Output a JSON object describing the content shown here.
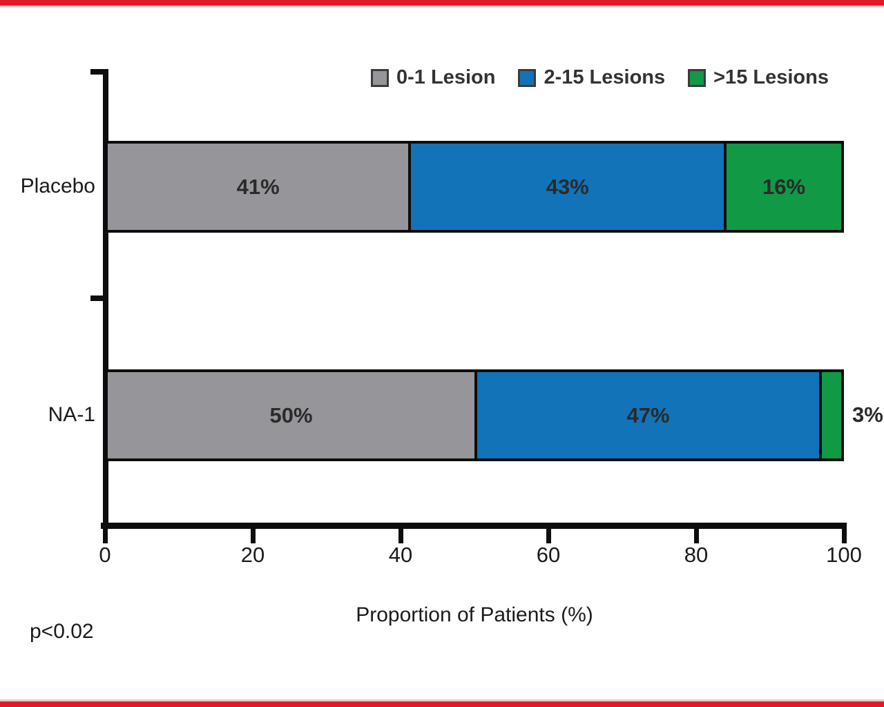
{
  "theme": {
    "frame_red": "#e01a2b",
    "frame_pink": "#f4c4c8",
    "axis_color": "#0d0d0d",
    "bar_label_color": "#2a2a2a",
    "legend_text_color": "#333333",
    "legend_swatch_border": "#3b3b3b"
  },
  "chart_data": {
    "type": "bar",
    "orientation": "horizontal",
    "stacked": true,
    "title": "",
    "xlabel": "Proportion of Patients (%)",
    "xlim": [
      0,
      100
    ],
    "xticks": [
      0,
      20,
      40,
      60,
      80,
      100
    ],
    "grid": false,
    "legend_position": "top",
    "categories": [
      "Placebo",
      "NA-1"
    ],
    "series": [
      {
        "name": "0-1 Lesion",
        "color": "#96969a",
        "values": [
          41,
          50
        ]
      },
      {
        "name": "2-15 Lesions",
        "color": "#1273b9",
        "values": [
          43,
          47
        ]
      },
      {
        "name": ">15 Lesions",
        "color": "#119945",
        "values": [
          16,
          3
        ]
      }
    ],
    "data_labels": [
      [
        "41%",
        "43%",
        "16%"
      ],
      [
        "50%",
        "47%",
        "3%"
      ]
    ],
    "annotation": "p<0.02"
  }
}
